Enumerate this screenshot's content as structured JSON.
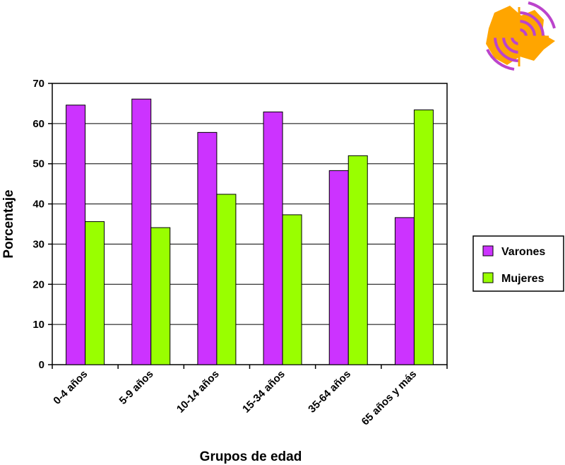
{
  "chart_data": {
    "type": "bar",
    "title": "",
    "xlabel": "Grupos de edad",
    "ylabel": "Porcentaje",
    "ylim": [
      0,
      70
    ],
    "yticks": [
      0,
      10,
      20,
      30,
      40,
      50,
      60,
      70
    ],
    "grid": true,
    "legend_position": "right",
    "categories": [
      "0-4 años",
      "5-9 años",
      "10-14 años",
      "15-34 años",
      "35-64 años",
      "65 años y más"
    ],
    "series": [
      {
        "name": "Varones",
        "color": "#cc33ff",
        "values": [
          64.6,
          66.1,
          57.8,
          62.9,
          48.3,
          36.6
        ]
      },
      {
        "name": "Mujeres",
        "color": "#99ff00",
        "values": [
          35.6,
          34.1,
          42.4,
          37.3,
          52.0,
          63.4
        ]
      }
    ]
  },
  "logo": {
    "icon": "orange-star-map-with-purple-arcs",
    "colors": [
      "#ffa500",
      "#bb44cc"
    ]
  }
}
